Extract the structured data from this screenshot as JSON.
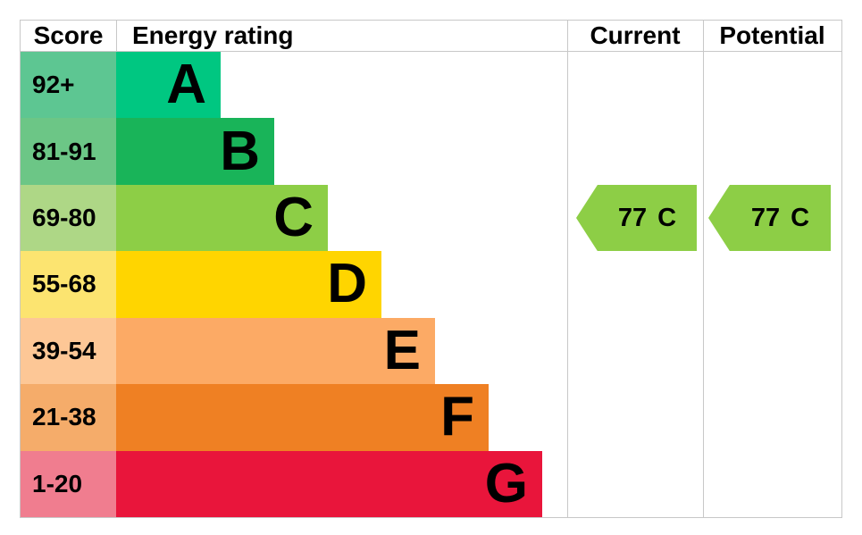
{
  "header": {
    "score": "Score",
    "energy_rating": "Energy rating",
    "current": "Current",
    "potential": "Potential"
  },
  "chart_data": {
    "type": "bar",
    "title": "EPC energy efficiency rating chart",
    "legend_position": "none",
    "columns": [
      "Score",
      "Energy rating",
      "Current",
      "Potential"
    ],
    "bands": [
      {
        "grade": "A",
        "score_range": "92+",
        "bar_color": "#00c781",
        "score_cell_color": "#5dc692"
      },
      {
        "grade": "B",
        "score_range": "81-91",
        "bar_color": "#19b459",
        "score_cell_color": "#6cc686"
      },
      {
        "grade": "C",
        "score_range": "69-80",
        "bar_color": "#8dce46",
        "score_cell_color": "#aed786"
      },
      {
        "grade": "D",
        "score_range": "55-68",
        "bar_color": "#ffd500",
        "score_cell_color": "#fce470"
      },
      {
        "grade": "E",
        "score_range": "39-54",
        "bar_color": "#fcaa65",
        "score_cell_color": "#fdc796"
      },
      {
        "grade": "F",
        "score_range": "21-38",
        "bar_color": "#ef8023",
        "score_cell_color": "#f5ac6a"
      },
      {
        "grade": "G",
        "score_range": "1-20",
        "bar_color": "#e9153b",
        "score_cell_color": "#f07d8f"
      }
    ],
    "current": {
      "score": "77",
      "grade": "C",
      "arrow_color": "#8dce46"
    },
    "potential": {
      "score": "77",
      "grade": "C",
      "arrow_color": "#8dce46"
    }
  }
}
